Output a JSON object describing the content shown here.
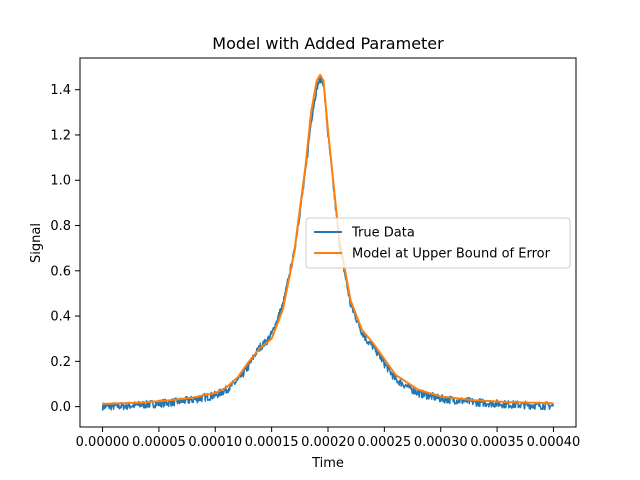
{
  "chart_data": {
    "type": "line",
    "title": "Model with Added Parameter",
    "xlabel": "Time",
    "ylabel": "Signal",
    "xlim": [
      -2e-05,
      0.00042
    ],
    "ylim": [
      -0.09,
      1.54
    ],
    "xticks": [
      0.0,
      5e-05,
      0.0001,
      0.00015,
      0.0002,
      0.00025,
      0.0003,
      0.00035,
      0.0004
    ],
    "xtick_labels": [
      "0.00000",
      "0.00005",
      "0.00010",
      "0.00015",
      "0.00020",
      "0.00025",
      "0.00030",
      "0.00035",
      "0.00040"
    ],
    "yticks": [
      0.0,
      0.2,
      0.4,
      0.6,
      0.8,
      1.0,
      1.2,
      1.4
    ],
    "ytick_labels": [
      "0.0",
      "0.2",
      "0.4",
      "0.6",
      "0.8",
      "1.0",
      "1.2",
      "1.4"
    ],
    "grid": false,
    "legend_position": "center-right",
    "series": [
      {
        "name": "True Data",
        "color": "#1f77b4",
        "noisy": true,
        "x": [
          0.0,
          2e-05,
          4e-05,
          6e-05,
          8e-05,
          0.0001,
          0.00011,
          0.00012,
          0.00013,
          0.000135,
          0.00014,
          0.000145,
          0.00015,
          0.00016,
          0.00017,
          0.00018,
          0.000185,
          0.00019,
          0.000193,
          0.000196,
          0.0002,
          0.00021,
          0.00022,
          0.00023,
          0.000235,
          0.00024,
          0.000245,
          0.00025,
          0.00026,
          0.00028,
          0.0003,
          0.00033,
          0.00036,
          0.0004
        ],
        "y": [
          0.0,
          0.003,
          0.01,
          0.018,
          0.03,
          0.05,
          0.075,
          0.115,
          0.18,
          0.23,
          0.265,
          0.285,
          0.32,
          0.45,
          0.68,
          1.03,
          1.26,
          1.41,
          1.45,
          1.43,
          1.2,
          0.72,
          0.45,
          0.33,
          0.29,
          0.265,
          0.23,
          0.19,
          0.12,
          0.06,
          0.035,
          0.02,
          0.01,
          0.003
        ]
      },
      {
        "name": "Model at Upper Bound of Error",
        "color": "#ff7f0e",
        "noisy": false,
        "x": [
          0.0,
          2e-05,
          4e-05,
          6e-05,
          8e-05,
          0.0001,
          0.00011,
          0.00012,
          0.00013,
          0.00014,
          0.00015,
          0.00016,
          0.00017,
          0.00018,
          0.000185,
          0.00019,
          0.000193,
          0.000196,
          0.0002,
          0.00021,
          0.00022,
          0.00023,
          0.00024,
          0.00025,
          0.00026,
          0.00028,
          0.0003,
          0.00033,
          0.00036,
          0.0004
        ],
        "y": [
          0.012,
          0.015,
          0.02,
          0.028,
          0.04,
          0.06,
          0.085,
          0.13,
          0.2,
          0.26,
          0.3,
          0.43,
          0.68,
          1.06,
          1.3,
          1.44,
          1.465,
          1.44,
          1.22,
          0.74,
          0.47,
          0.34,
          0.28,
          0.21,
          0.14,
          0.075,
          0.045,
          0.028,
          0.02,
          0.015
        ]
      }
    ]
  }
}
